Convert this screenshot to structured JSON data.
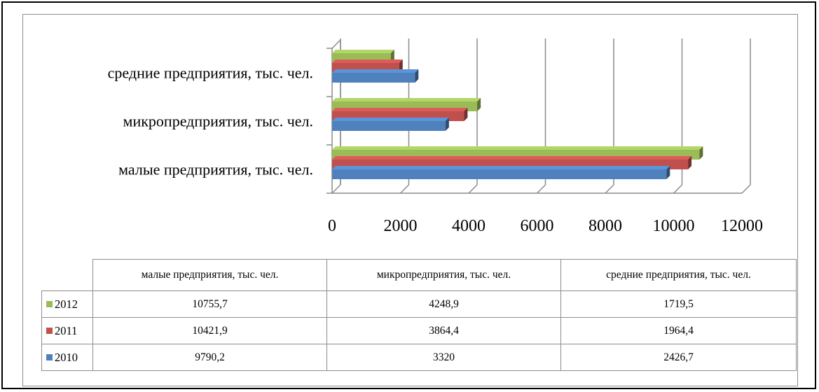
{
  "chart_data": {
    "type": "bar",
    "orientation": "horizontal",
    "style": "3d-clustered",
    "categories": [
      "малые предприятия, тыс. чел.",
      "микропредприятия, тыс. чел.",
      "средние предприятия, тыс. чел."
    ],
    "series": [
      {
        "name": "2010",
        "color": "#4f81bd",
        "values": [
          9790.2,
          3320,
          2426.7
        ],
        "labels": [
          "9790,2",
          "3320",
          "2426,7"
        ]
      },
      {
        "name": "2011",
        "color": "#c0504d",
        "values": [
          10421.9,
          3864.4,
          1964.4
        ],
        "labels": [
          "10421,9",
          "3864,4",
          "1964,4"
        ]
      },
      {
        "name": "2012",
        "color": "#9bbb59",
        "values": [
          10755.7,
          4248.9,
          1719.5
        ],
        "labels": [
          "10755,7",
          "4248,9",
          "1719,5"
        ]
      }
    ],
    "xlim": [
      0,
      12000
    ],
    "ticks": [
      "0",
      "2000",
      "4000",
      "6000",
      "8000",
      "10000",
      "12000"
    ],
    "grid": true,
    "legend": "data-table-below",
    "title": "",
    "xlabel": "",
    "ylabel": ""
  }
}
